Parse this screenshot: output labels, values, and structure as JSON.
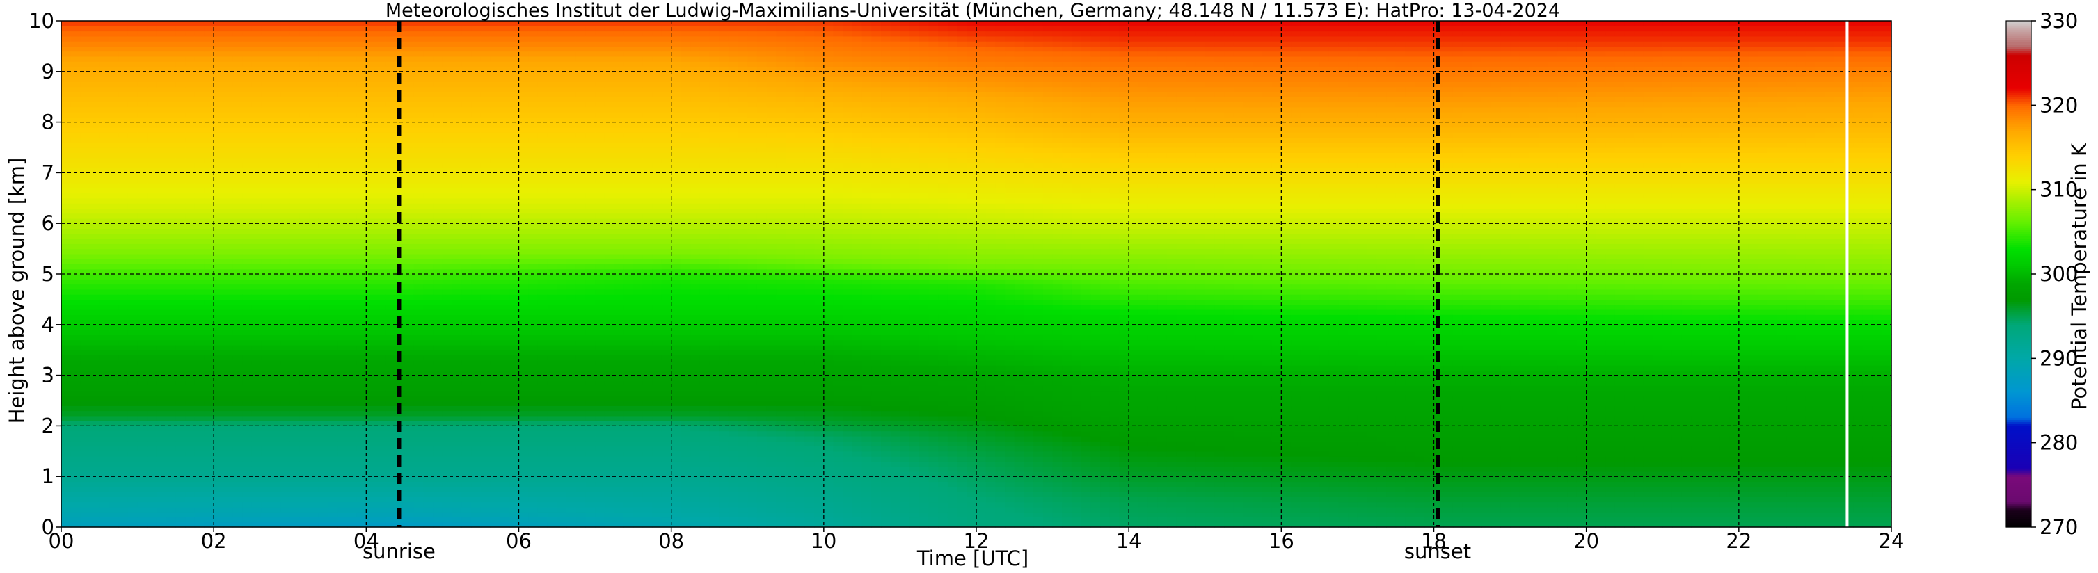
{
  "chart_data": {
    "type": "heatmap",
    "title": "Meteorologisches Institut der Ludwig-Maximilians-Universität (München, Germany; 48.148 N / 11.573 E):    HatPro: 13-04-2024",
    "xlabel": "Time [UTC]",
    "ylabel": "Height above ground [km]",
    "colorbar_label": "Potential Temperature in K",
    "xlim": [
      0,
      24
    ],
    "ylim": [
      0,
      10
    ],
    "x_ticks": [
      {
        "value": 0,
        "label": "00"
      },
      {
        "value": 2,
        "label": "02"
      },
      {
        "value": 4,
        "label": "04"
      },
      {
        "value": 6,
        "label": "06"
      },
      {
        "value": 8,
        "label": "08"
      },
      {
        "value": 10,
        "label": "10"
      },
      {
        "value": 12,
        "label": "12"
      },
      {
        "value": 14,
        "label": "14"
      },
      {
        "value": 16,
        "label": "16"
      },
      {
        "value": 18,
        "label": "18"
      },
      {
        "value": 20,
        "label": "20"
      },
      {
        "value": 22,
        "label": "22"
      },
      {
        "value": 24,
        "label": "24"
      }
    ],
    "y_ticks": [
      {
        "value": 0,
        "label": "0"
      },
      {
        "value": 1,
        "label": "1"
      },
      {
        "value": 2,
        "label": "2"
      },
      {
        "value": 3,
        "label": "3"
      },
      {
        "value": 4,
        "label": "4"
      },
      {
        "value": 5,
        "label": "5"
      },
      {
        "value": 6,
        "label": "6"
      },
      {
        "value": 7,
        "label": "7"
      },
      {
        "value": 8,
        "label": "8"
      },
      {
        "value": 9,
        "label": "9"
      },
      {
        "value": 10,
        "label": "10"
      }
    ],
    "colorbar_range": [
      270,
      330
    ],
    "colorbar_ticks": [
      {
        "value": 270,
        "label": "270"
      },
      {
        "value": 280,
        "label": "280"
      },
      {
        "value": 290,
        "label": "290"
      },
      {
        "value": 300,
        "label": "300"
      },
      {
        "value": 310,
        "label": "310"
      },
      {
        "value": 320,
        "label": "320"
      },
      {
        "value": 330,
        "label": "330"
      }
    ],
    "colormap": [
      {
        "v": 270,
        "c": "#000000"
      },
      {
        "v": 272,
        "c": "#1a001a"
      },
      {
        "v": 273,
        "c": "#6a0a6e"
      },
      {
        "v": 276,
        "c": "#7a0a7a"
      },
      {
        "v": 277,
        "c": "#1a00b4"
      },
      {
        "v": 282,
        "c": "#0010c8"
      },
      {
        "v": 283,
        "c": "#0070e0"
      },
      {
        "v": 286,
        "c": "#0096d2"
      },
      {
        "v": 290,
        "c": "#00a8a8"
      },
      {
        "v": 294,
        "c": "#00a878"
      },
      {
        "v": 297,
        "c": "#009a00"
      },
      {
        "v": 299,
        "c": "#00a800"
      },
      {
        "v": 301,
        "c": "#00c800"
      },
      {
        "v": 303,
        "c": "#00e000"
      },
      {
        "v": 306,
        "c": "#60f000"
      },
      {
        "v": 309,
        "c": "#b0f000"
      },
      {
        "v": 311,
        "c": "#e8f000"
      },
      {
        "v": 314,
        "c": "#ffd000"
      },
      {
        "v": 317,
        "c": "#ffa800"
      },
      {
        "v": 320,
        "c": "#ff6a00"
      },
      {
        "v": 322,
        "c": "#e80000"
      },
      {
        "v": 326,
        "c": "#cc0000"
      },
      {
        "v": 327,
        "c": "#b86a6a"
      },
      {
        "v": 329,
        "c": "#c8a8a8"
      },
      {
        "v": 330,
        "c": "#d0d0d0"
      }
    ],
    "columns": [
      {
        "t": 0.0,
        "profile": [
          [
            0,
            288
          ],
          [
            0.2,
            289
          ],
          [
            1.0,
            292
          ],
          [
            2.0,
            294
          ],
          [
            2.2,
            296
          ],
          [
            2.6,
            297.5
          ],
          [
            3.3,
            299
          ],
          [
            4.2,
            302
          ],
          [
            5.0,
            305
          ],
          [
            5.4,
            307
          ],
          [
            6.2,
            310
          ],
          [
            7.2,
            312.5
          ],
          [
            8.3,
            315
          ],
          [
            9.2,
            317
          ],
          [
            9.8,
            320
          ],
          [
            10.0,
            321
          ]
        ]
      },
      {
        "t": 4.4,
        "profile": [
          [
            0,
            287
          ],
          [
            0.2,
            288.5
          ],
          [
            1.0,
            292
          ],
          [
            2.0,
            294
          ],
          [
            2.2,
            296
          ],
          [
            2.6,
            297.5
          ],
          [
            3.3,
            299
          ],
          [
            4.2,
            302
          ],
          [
            5.0,
            305
          ],
          [
            5.4,
            307
          ],
          [
            6.2,
            310
          ],
          [
            7.2,
            312.5
          ],
          [
            8.3,
            315
          ],
          [
            9.2,
            317
          ],
          [
            9.8,
            320
          ],
          [
            10.0,
            321
          ]
        ]
      },
      {
        "t": 8.0,
        "profile": [
          [
            0,
            289
          ],
          [
            0.2,
            290
          ],
          [
            1.0,
            292
          ],
          [
            2.0,
            294
          ],
          [
            2.2,
            296
          ],
          [
            2.6,
            297.5
          ],
          [
            3.3,
            299
          ],
          [
            4.2,
            302
          ],
          [
            5.0,
            304
          ],
          [
            5.4,
            307
          ],
          [
            6.2,
            310
          ],
          [
            7.2,
            312.5
          ],
          [
            8.3,
            315
          ],
          [
            9.2,
            317
          ],
          [
            9.8,
            320
          ],
          [
            10.0,
            321
          ]
        ]
      },
      {
        "t": 10.0,
        "profile": [
          [
            0,
            291
          ],
          [
            0.2,
            291.5
          ],
          [
            1.0,
            293
          ],
          [
            1.8,
            294.5
          ],
          [
            2.1,
            296
          ],
          [
            2.6,
            297.5
          ],
          [
            3.3,
            299
          ],
          [
            4.2,
            302
          ],
          [
            4.9,
            304
          ],
          [
            5.3,
            307
          ],
          [
            6.2,
            310
          ],
          [
            7.2,
            312.5
          ],
          [
            8.3,
            315.5
          ],
          [
            9.1,
            318
          ],
          [
            9.7,
            320
          ],
          [
            10.0,
            321
          ]
        ]
      },
      {
        "t": 12.0,
        "profile": [
          [
            0,
            293.5
          ],
          [
            0.5,
            294
          ],
          [
            1.3,
            295
          ],
          [
            1.8,
            296
          ],
          [
            2.4,
            297.5
          ],
          [
            3.1,
            299
          ],
          [
            4.1,
            302
          ],
          [
            4.8,
            304
          ],
          [
            5.2,
            307
          ],
          [
            6.1,
            310
          ],
          [
            7.0,
            312.5
          ],
          [
            8.2,
            316
          ],
          [
            9.0,
            318.5
          ],
          [
            9.6,
            320.5
          ],
          [
            10.0,
            322
          ]
        ]
      },
      {
        "t": 14.0,
        "profile": [
          [
            0,
            294.5
          ],
          [
            0.5,
            295
          ],
          [
            1.0,
            296
          ],
          [
            1.6,
            297
          ],
          [
            2.3,
            298.5
          ],
          [
            3.0,
            299.5
          ],
          [
            4.0,
            302
          ],
          [
            4.7,
            305
          ],
          [
            5.2,
            307
          ],
          [
            6.0,
            310
          ],
          [
            7.0,
            313
          ],
          [
            8.0,
            316.5
          ],
          [
            9.0,
            319
          ],
          [
            9.6,
            321
          ],
          [
            10.0,
            322
          ]
        ]
      },
      {
        "t": 18.0,
        "profile": [
          [
            0,
            295
          ],
          [
            0.4,
            295.5
          ],
          [
            1.0,
            296.5
          ],
          [
            1.6,
            297.5
          ],
          [
            2.3,
            298.5
          ],
          [
            3.0,
            299.5
          ],
          [
            3.9,
            302
          ],
          [
            4.6,
            305
          ],
          [
            5.1,
            307
          ],
          [
            6.0,
            310
          ],
          [
            7.0,
            313
          ],
          [
            8.0,
            316.5
          ],
          [
            8.9,
            319
          ],
          [
            9.6,
            321
          ],
          [
            10.0,
            322
          ]
        ]
      },
      {
        "t": 24.0,
        "profile": [
          [
            0,
            295
          ],
          [
            0.4,
            295.5
          ],
          [
            1.0,
            296.5
          ],
          [
            1.6,
            297.5
          ],
          [
            2.3,
            298.5
          ],
          [
            3.0,
            299.5
          ],
          [
            3.8,
            302
          ],
          [
            4.5,
            305
          ],
          [
            5.0,
            307
          ],
          [
            6.0,
            310
          ],
          [
            7.0,
            313
          ],
          [
            8.0,
            316
          ],
          [
            8.9,
            318.5
          ],
          [
            9.6,
            321
          ],
          [
            10.0,
            322
          ]
        ]
      }
    ],
    "markers": [
      {
        "x": 4.43,
        "label": "sunrise",
        "style": "black-dashed"
      },
      {
        "x": 18.05,
        "label": "sunset",
        "style": "black-dashed"
      },
      {
        "x": 23.42,
        "label": "",
        "style": "white-solid"
      }
    ],
    "grid": true
  }
}
